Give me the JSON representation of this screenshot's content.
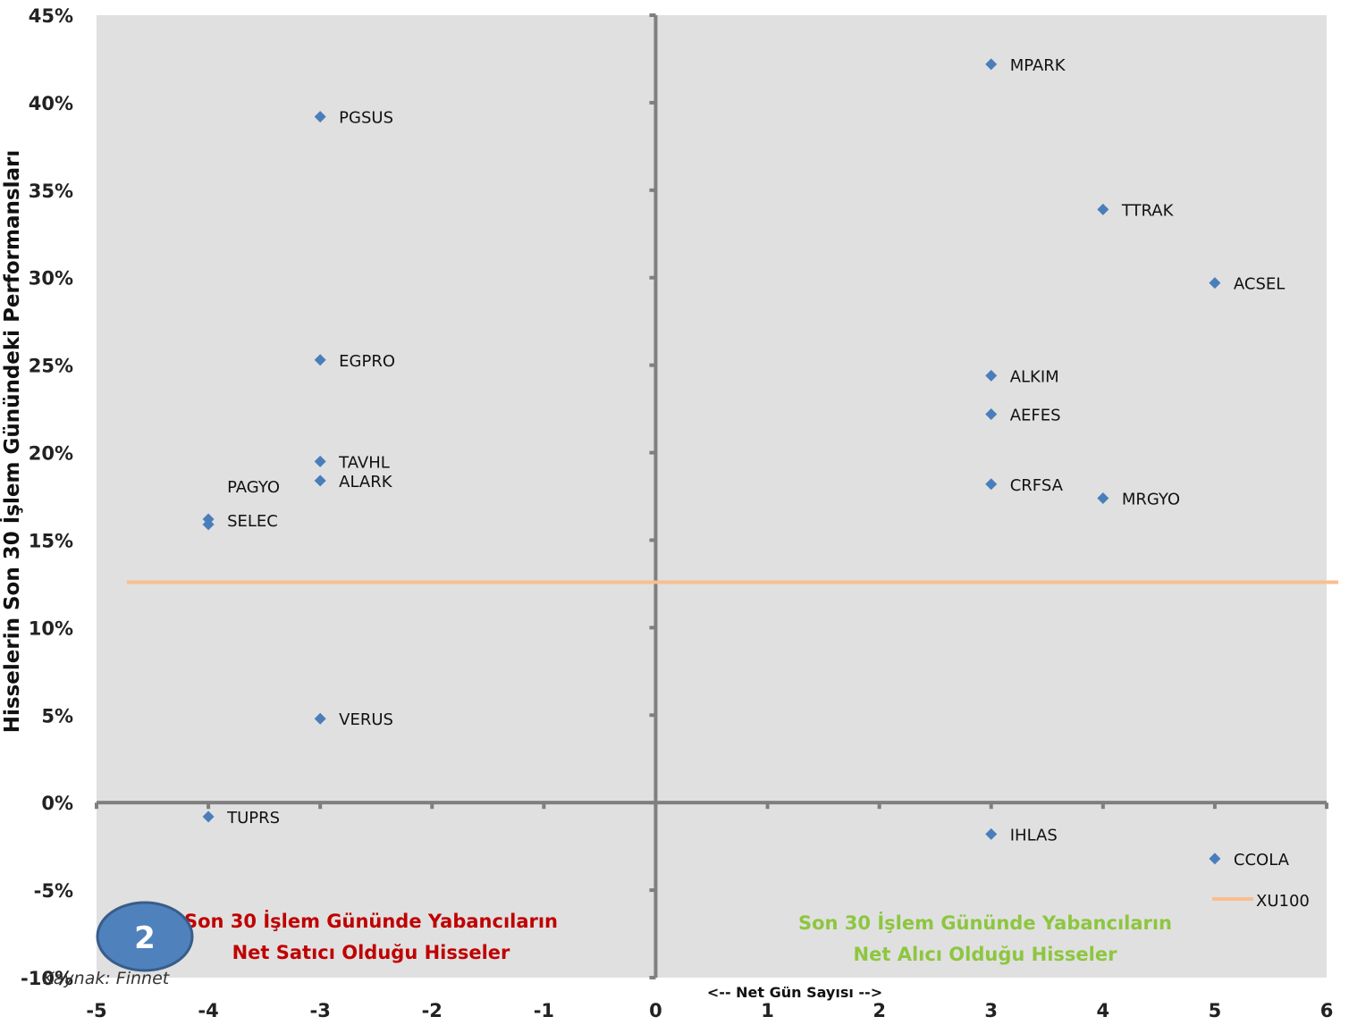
{
  "chart_data": {
    "type": "scatter",
    "ylabel": "Hisselerin Son  30 İşlem Günündeki  Performansları",
    "xlabel": "<-- Net Gün Sayısı -->",
    "xlim": [
      -5,
      6
    ],
    "ylim": [
      -10,
      45
    ],
    "x_ticks": [
      "-5",
      "-4",
      "-3",
      "-2",
      "-1",
      "0",
      "1",
      "2",
      "3",
      "4",
      "5",
      "6"
    ],
    "y_ticks": [
      "-10%",
      "-5%",
      "0%",
      "5%",
      "10%",
      "15%",
      "20%",
      "25%",
      "30%",
      "35%",
      "40%",
      "45%"
    ],
    "marker_color": "#4a7ebb",
    "grid": false,
    "points": [
      {
        "label": "MPARK",
        "x": 3,
        "y": 42.2
      },
      {
        "label": "PGSUS",
        "x": -3,
        "y": 39.2
      },
      {
        "label": "TTRAK",
        "x": 4,
        "y": 33.9
      },
      {
        "label": "ACSEL",
        "x": 5,
        "y": 29.7
      },
      {
        "label": "EGPRO",
        "x": -3,
        "y": 25.3
      },
      {
        "label": "ALKIM",
        "x": 3,
        "y": 24.4
      },
      {
        "label": "AEFES",
        "x": 3,
        "y": 22.2
      },
      {
        "label": "TAVHL",
        "x": -3,
        "y": 19.5
      },
      {
        "label": "ALARK",
        "x": -3,
        "y": 18.4
      },
      {
        "label": "CRFSA",
        "x": 3,
        "y": 18.2
      },
      {
        "label": "MRGYO",
        "x": 4,
        "y": 17.4
      },
      {
        "label": "PAGYO",
        "x": -4,
        "y": 16.2
      },
      {
        "label": "SELEC",
        "x": -4,
        "y": 15.9
      },
      {
        "label": "VERUS",
        "x": -3,
        "y": 4.8
      },
      {
        "label": "TUPRS",
        "x": -4,
        "y": -0.8
      },
      {
        "label": "IHLAS",
        "x": 3,
        "y": -1.8
      },
      {
        "label": "CCOLA",
        "x": 5,
        "y": -3.2
      }
    ],
    "reference_line": {
      "name": "XU100",
      "y": 12.6,
      "color": "#f9be8f"
    },
    "legend": {
      "entries": [
        "XU100"
      ],
      "position": "bottom-right"
    },
    "annotations": {
      "left": [
        "Son 30 İşlem Gününde Yabancıların",
        "Net Satıcı  Olduğu Hisseler"
      ],
      "right": [
        "Son 30 İşlem Gününde Yabancıların",
        "Net Alıcı Olduğu Hisseler"
      ]
    }
  },
  "source_text": "Kaynak: Finnet",
  "badge_number": "2",
  "colors": {
    "plot_bg": "#e0e0e0",
    "axis": "#7f7f7f",
    "red": "#c00000",
    "green": "#8dc63f",
    "badge_fill": "#4f81bd",
    "badge_stroke": "#385d8a"
  }
}
